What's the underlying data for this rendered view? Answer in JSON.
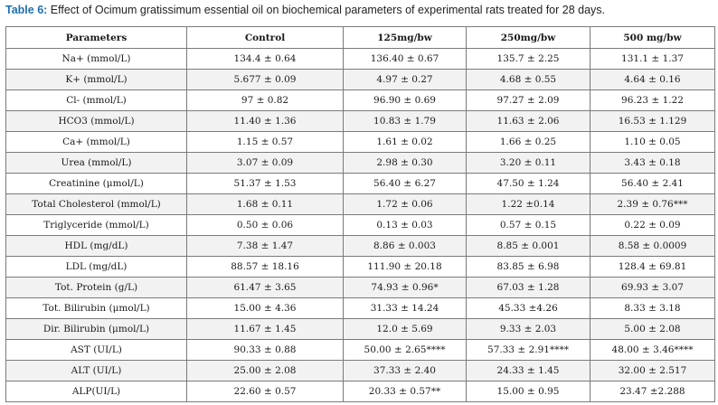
{
  "caption": {
    "label": "Table 6:",
    "text": " Effect of Ocimum gratissimum essential oil on biochemical parameters of experimental rats treated for 28 days."
  },
  "table": {
    "headers": [
      "Parameters",
      "Control",
      "125mg/bw",
      "250mg/bw",
      "500 mg/bw"
    ],
    "rows": [
      [
        "Na+ (mmol/L)",
        "134.4 ± 0.64",
        "136.40 ± 0.67",
        "135.7 ± 2.25",
        "131.1 ± 1.37"
      ],
      [
        "K+ (mmol/L)",
        "5.677 ± 0.09",
        "4.97 ± 0.27",
        "4.68 ± 0.55",
        "4.64 ± 0.16"
      ],
      [
        "Cl- (mmol/L)",
        "97 ± 0.82",
        "96.90 ± 0.69",
        "97.27 ± 2.09",
        "96.23 ± 1.22"
      ],
      [
        "HCO3 (mmol/L)",
        "11.40 ± 1.36",
        "10.83 ± 1.79",
        "11.63 ± 2.06",
        "16.53 ± 1.129"
      ],
      [
        "Ca+ (mmol/L)",
        "1.15 ± 0.57",
        "1.61 ± 0.02",
        "1.66 ± 0.25",
        "1.10 ± 0.05"
      ],
      [
        "Urea (mmol/L)",
        "3.07 ± 0.09",
        "2.98 ± 0.30",
        "3.20 ± 0.11",
        "3.43 ± 0.18"
      ],
      [
        "Creatinine (μmol/L)",
        "51.37 ± 1.53",
        "56.40 ± 6.27",
        "47.50 ± 1.24",
        "56.40 ± 2.41"
      ],
      [
        "Total Cholesterol (mmol/L)",
        "1.68 ± 0.11",
        "1.72 ± 0.06",
        "1.22 ±0.14",
        "2.39 ± 0.76***"
      ],
      [
        "Triglyceride (mmol/L)",
        "0.50 ± 0.06",
        "0.13 ± 0.03",
        "0.57 ± 0.15",
        "0.22 ± 0.09"
      ],
      [
        "HDL (mg/dL)",
        "7.38 ± 1.47",
        "8.86 ± 0.003",
        "8.85 ± 0.001",
        "8.58 ± 0.0009"
      ],
      [
        "LDL (mg/dL)",
        "88.57 ± 18.16",
        "111.90 ± 20.18",
        "83.85 ± 6.98",
        "128.4 ± 69.81"
      ],
      [
        "Tot. Protein (g/L)",
        "61.47 ± 3.65",
        "74.93 ± 0.96*",
        "67.03 ± 1.28",
        "69.93 ± 3.07"
      ],
      [
        "Tot. Bilirubin (μmol/L)",
        "15.00 ± 4.36",
        "31.33 ± 14.24",
        "45.33 ±4.26",
        "8.33 ± 3.18"
      ],
      [
        "Dir. Bilirubin (μmol/L)",
        "11.67 ± 1.45",
        "12.0 ± 5.69",
        "9.33 ± 2.03",
        "5.00 ± 2.08"
      ],
      [
        "AST (UI/L)",
        "90.33 ± 0.88",
        "50.00 ± 2.65****",
        "57.33 ± 2.91****",
        "48.00 ± 3.46****"
      ],
      [
        "ALT (UI/L)",
        "25.00 ± 2.08",
        "37.33 ± 2.40",
        "24.33 ± 1.45",
        "32.00 ± 2.517"
      ],
      [
        "ALP(UI/L)",
        "22.60 ± 0.57",
        "20.33 ± 0.57**",
        "15.00 ± 0.95",
        "23.47 ±2.288"
      ]
    ]
  }
}
